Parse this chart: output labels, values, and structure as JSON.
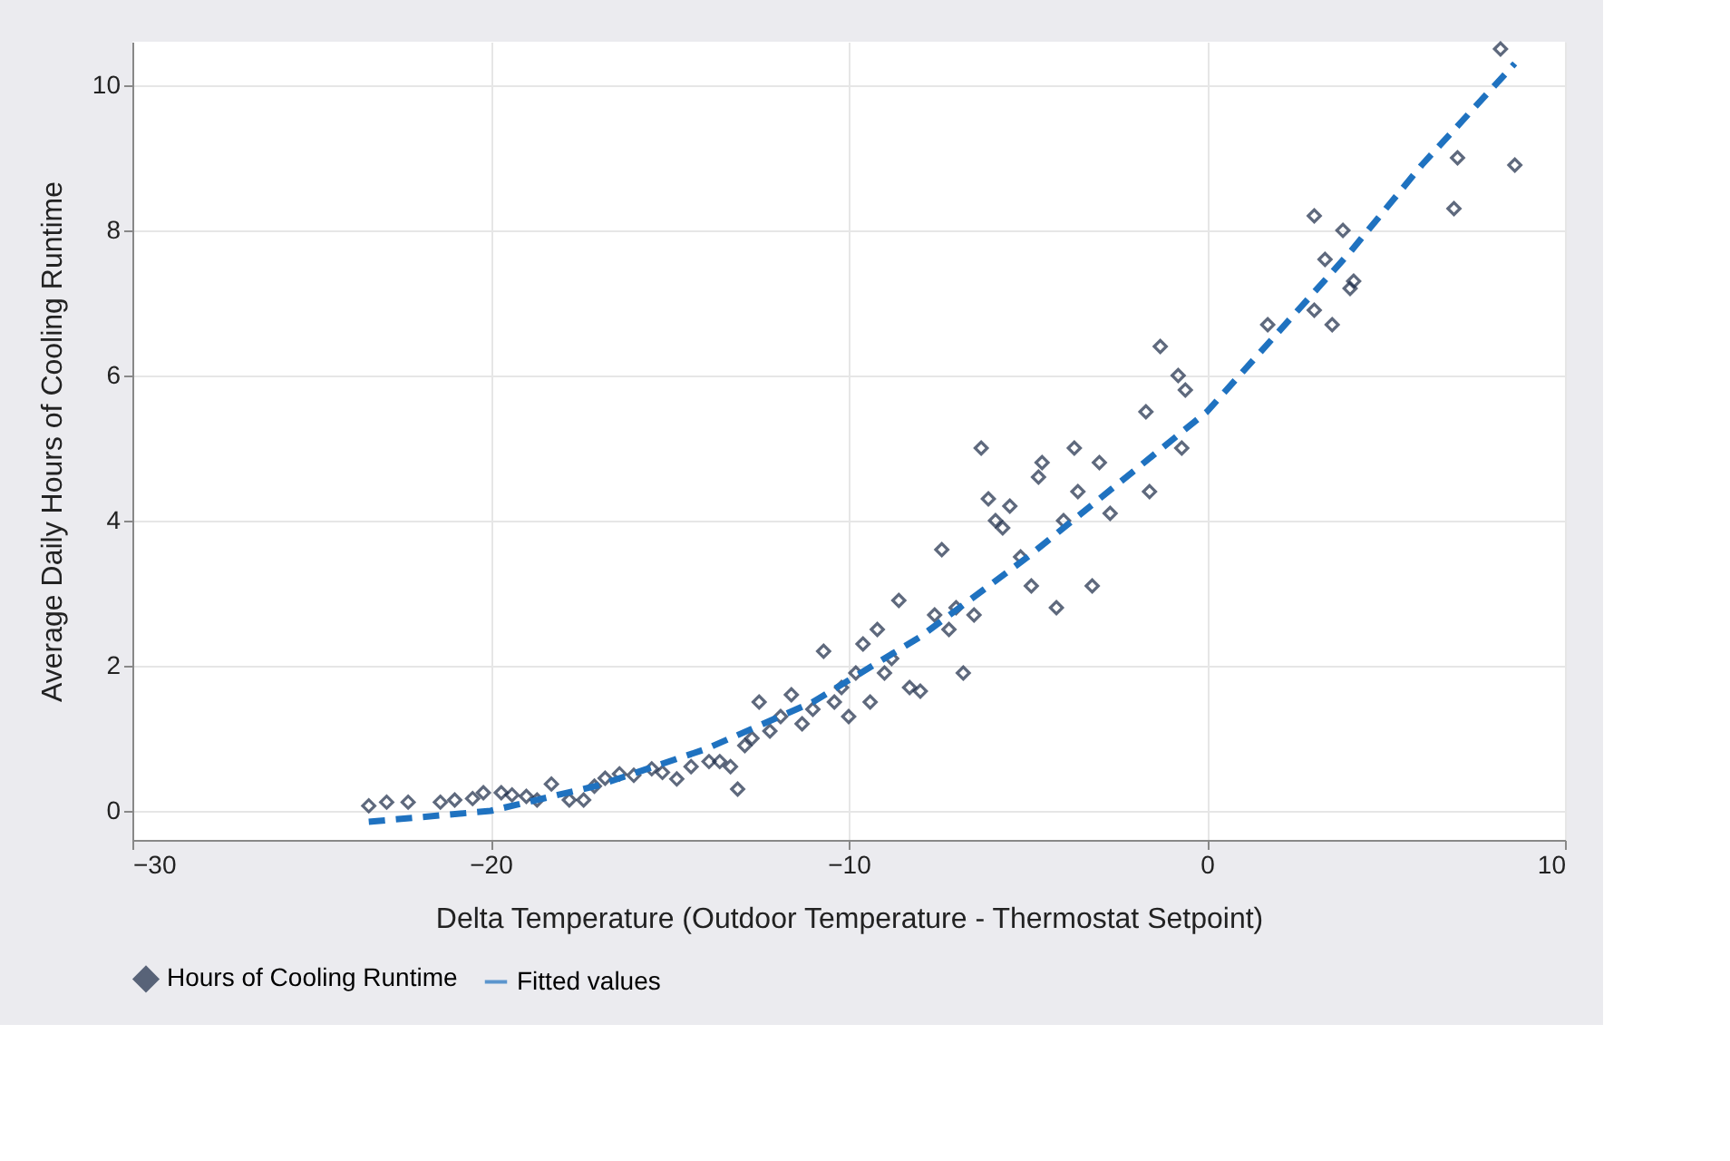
{
  "chart_data": {
    "type": "scatter",
    "xlabel": "Delta Temperature (Outdoor Temperature - Thermostat Setpoint)",
    "ylabel": "Average Daily Hours of Cooling Runtime",
    "xlim": [
      -30,
      10
    ],
    "xticks": [
      -30,
      -20,
      -10,
      0,
      10
    ],
    "ylim": [
      -0.4,
      10.6
    ],
    "yticks": [
      0,
      2,
      4,
      6,
      8,
      10
    ],
    "grid": true,
    "legend": "bottom",
    "series": [
      {
        "name": "Hours of Cooling Runtime",
        "color": "#1b2a47",
        "marker": "diamond",
        "x": [
          -23.4,
          -22.9,
          -22.3,
          -21.4,
          -21.0,
          -20.5,
          -20.2,
          -19.7,
          -19.4,
          -19.0,
          -18.7,
          -18.3,
          -17.8,
          -17.4,
          -17.1,
          -16.8,
          -16.4,
          -16.0,
          -15.5,
          -15.2,
          -14.8,
          -14.4,
          -13.9,
          -13.6,
          -13.3,
          -13.1,
          -12.9,
          -12.7,
          -12.5,
          -12.2,
          -11.9,
          -11.6,
          -11.3,
          -11.0,
          -10.7,
          -10.4,
          -10.2,
          -10.0,
          -9.8,
          -9.6,
          -9.4,
          -9.2,
          -9.0,
          -8.8,
          -8.6,
          -8.3,
          -8.0,
          -7.6,
          -7.4,
          -7.2,
          -7.0,
          -6.8,
          -6.5,
          -6.3,
          -6.1,
          -5.9,
          -5.7,
          -5.5,
          -5.2,
          -4.9,
          -4.7,
          -4.6,
          -4.2,
          -4.0,
          -3.7,
          -3.6,
          -3.2,
          -3.0,
          -2.7,
          -1.7,
          -1.6,
          -1.3,
          -0.8,
          -0.6,
          -0.7,
          1.7,
          3.0,
          3.3,
          3.0,
          3.5,
          3.8,
          4.0,
          4.1,
          7.0,
          6.9,
          8.2,
          8.6
        ],
        "values": [
          0.07,
          0.12,
          0.12,
          0.12,
          0.15,
          0.17,
          0.25,
          0.25,
          0.22,
          0.2,
          0.15,
          0.37,
          0.15,
          0.15,
          0.34,
          0.45,
          0.51,
          0.49,
          0.58,
          0.53,
          0.44,
          0.61,
          0.68,
          0.68,
          0.61,
          0.3,
          0.9,
          1.0,
          1.5,
          1.1,
          1.3,
          1.6,
          1.2,
          1.4,
          2.2,
          1.5,
          1.7,
          1.3,
          1.9,
          2.3,
          1.5,
          2.5,
          1.9,
          2.1,
          2.9,
          1.7,
          1.65,
          2.7,
          3.6,
          2.5,
          2.8,
          1.9,
          2.7,
          5.0,
          4.3,
          4.0,
          3.9,
          4.2,
          3.5,
          3.1,
          4.6,
          4.8,
          2.8,
          4.0,
          5.0,
          4.4,
          3.1,
          4.8,
          4.1,
          5.5,
          4.4,
          6.4,
          6.0,
          5.8,
          5.0,
          6.7,
          8.2,
          7.6,
          6.9,
          6.7,
          8.0,
          7.2,
          7.3,
          9.0,
          8.3,
          10.5,
          8.9
        ]
      },
      {
        "name": "Fitted values",
        "type": "line",
        "line_style": "dashed",
        "color": "#1f72c0",
        "x": [
          -23.4,
          -20,
          -17,
          -14,
          -11,
          -8,
          -5,
          -2,
          0,
          2,
          4,
          6,
          8.6
        ],
        "values": [
          -0.15,
          0.0,
          0.35,
          0.85,
          1.5,
          2.4,
          3.5,
          4.7,
          5.5,
          6.6,
          7.7,
          8.9,
          10.3
        ]
      }
    ]
  }
}
